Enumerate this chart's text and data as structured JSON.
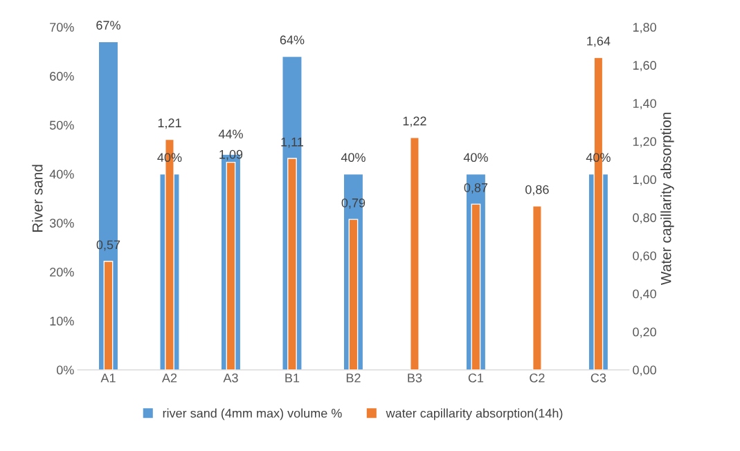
{
  "chart_data": {
    "type": "bar",
    "categories": [
      "A1",
      "A2",
      "A3",
      "B1",
      "B2",
      "B3",
      "C1",
      "C2",
      "C3"
    ],
    "ylabel": "River sand",
    "y2label": "Water capillarity absorption",
    "series": [
      {
        "name": "river sand (4mm max) volume %",
        "color": "#5b9bd5",
        "values": [
          67,
          40,
          44,
          64,
          40,
          null,
          40,
          null,
          40
        ],
        "value_labels": [
          "67%",
          "40%",
          "44%",
          "64%",
          "40%",
          null,
          "40%",
          null,
          "40%"
        ]
      },
      {
        "name": "water capillarity absorption(14h)",
        "color": "#ed7d31",
        "axis": "y2",
        "values": [
          0.57,
          1.21,
          1.09,
          1.11,
          0.79,
          1.22,
          0.87,
          0.86,
          1.64
        ],
        "value_labels": [
          "0,57",
          "1,21",
          "1,09",
          "1,11",
          "0,79",
          "1,22",
          "0,87",
          "0,86",
          "1,64"
        ]
      }
    ],
    "ylim": [
      0,
      70
    ],
    "yticks": [
      {
        "value": 0,
        "label": "0%"
      },
      {
        "value": 10,
        "label": "10%"
      },
      {
        "value": 20,
        "label": "20%"
      },
      {
        "value": 30,
        "label": "30%"
      },
      {
        "value": 40,
        "label": "40%"
      },
      {
        "value": 50,
        "label": "50%"
      },
      {
        "value": 60,
        "label": "60%"
      },
      {
        "value": 70,
        "label": "70%"
      }
    ],
    "y2lim": [
      0,
      1.8
    ],
    "y2ticks": [
      {
        "value": 0,
        "label": "0,00"
      },
      {
        "value": 0.2,
        "label": "0,20"
      },
      {
        "value": 0.4,
        "label": "0,40"
      },
      {
        "value": 0.6,
        "label": "0,60"
      },
      {
        "value": 0.8,
        "label": "0,80"
      },
      {
        "value": 1.0,
        "label": "1,00"
      },
      {
        "value": 1.2,
        "label": "1,20"
      },
      {
        "value": 1.4,
        "label": "1,40"
      },
      {
        "value": 1.6,
        "label": "1,60"
      },
      {
        "value": 1.8,
        "label": "1,80"
      }
    ],
    "grid": false,
    "legend": "bottom"
  }
}
